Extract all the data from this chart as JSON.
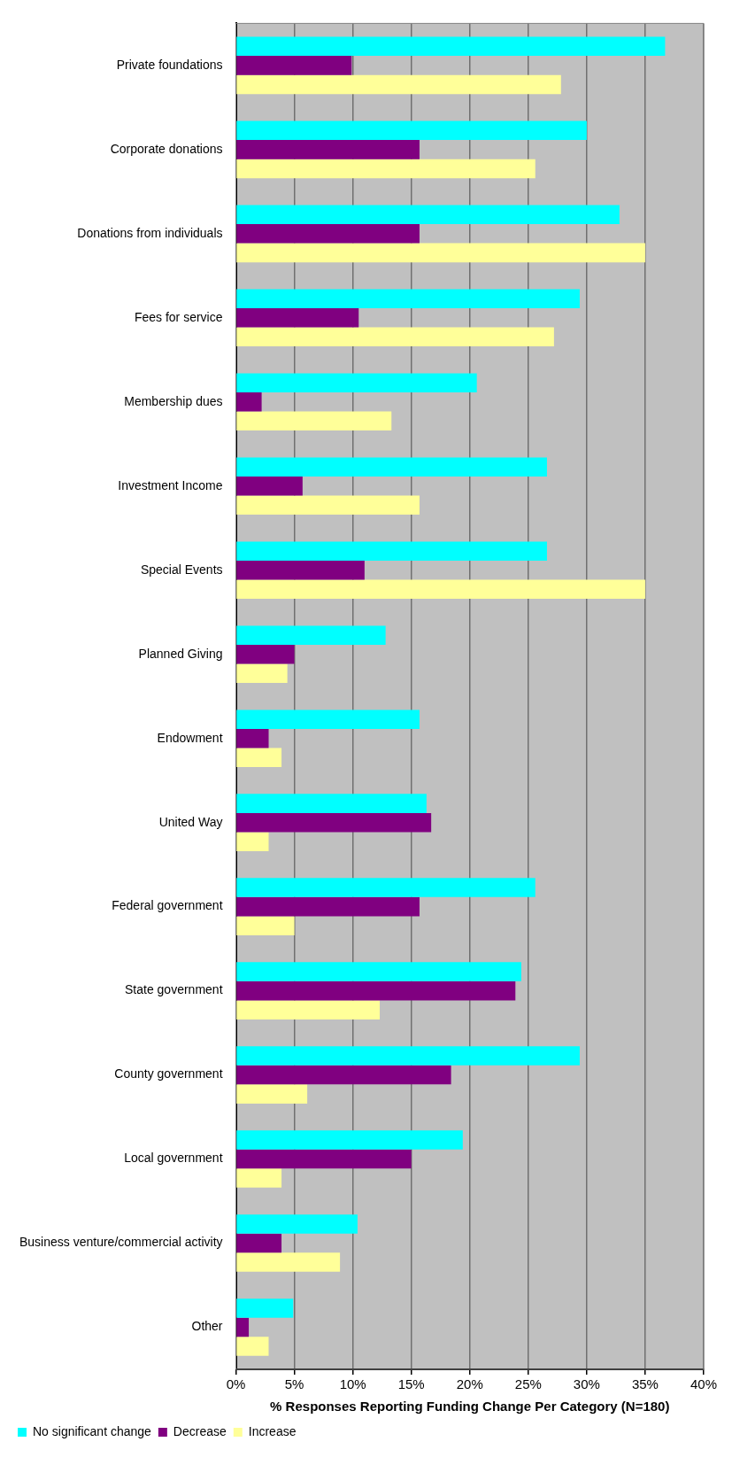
{
  "chart_data": {
    "type": "bar",
    "orientation": "horizontal",
    "xlabel": "% Responses Reporting Funding Change Per Category (N=180)",
    "categories": [
      "Private foundations",
      "Corporate donations",
      "Donations from individuals",
      "Fees for service",
      "Membership dues",
      "Investment Income",
      "Special Events",
      "Planned Giving",
      "Endowment",
      "United Way",
      "Federal government",
      "State government",
      "County government",
      "Local government",
      "Business venture/commercial activity",
      "Other"
    ],
    "series": [
      {
        "name": "No significant change",
        "color": "#00ffff",
        "values": [
          36.7,
          30.0,
          32.8,
          29.4,
          20.6,
          26.6,
          26.6,
          12.8,
          15.7,
          16.3,
          25.6,
          24.4,
          29.4,
          19.4,
          10.4,
          4.9
        ]
      },
      {
        "name": "Decrease",
        "color": "#800080",
        "values": [
          9.9,
          15.7,
          15.7,
          10.5,
          2.2,
          5.7,
          11.0,
          5.0,
          2.8,
          16.7,
          15.7,
          23.9,
          18.4,
          15.0,
          3.9,
          1.1
        ]
      },
      {
        "name": "Increase",
        "color": "#ffff99",
        "values": [
          27.8,
          25.6,
          35.0,
          27.2,
          13.3,
          15.7,
          35.0,
          4.4,
          3.9,
          2.8,
          5.0,
          12.3,
          6.1,
          3.9,
          8.9,
          2.8
        ]
      }
    ],
    "xlim": [
      0,
      40
    ],
    "xticks": [
      {
        "value": 0,
        "label": "0%"
      },
      {
        "value": 5,
        "label": "5%"
      },
      {
        "value": 10,
        "label": "10%"
      },
      {
        "value": 15,
        "label": "15%"
      },
      {
        "value": 20,
        "label": "20%"
      },
      {
        "value": 25,
        "label": "25%"
      },
      {
        "value": 30,
        "label": "30%"
      },
      {
        "value": 35,
        "label": "35%"
      },
      {
        "value": 40,
        "label": "40%"
      }
    ],
    "grid": "x",
    "legend": "bottom left"
  }
}
